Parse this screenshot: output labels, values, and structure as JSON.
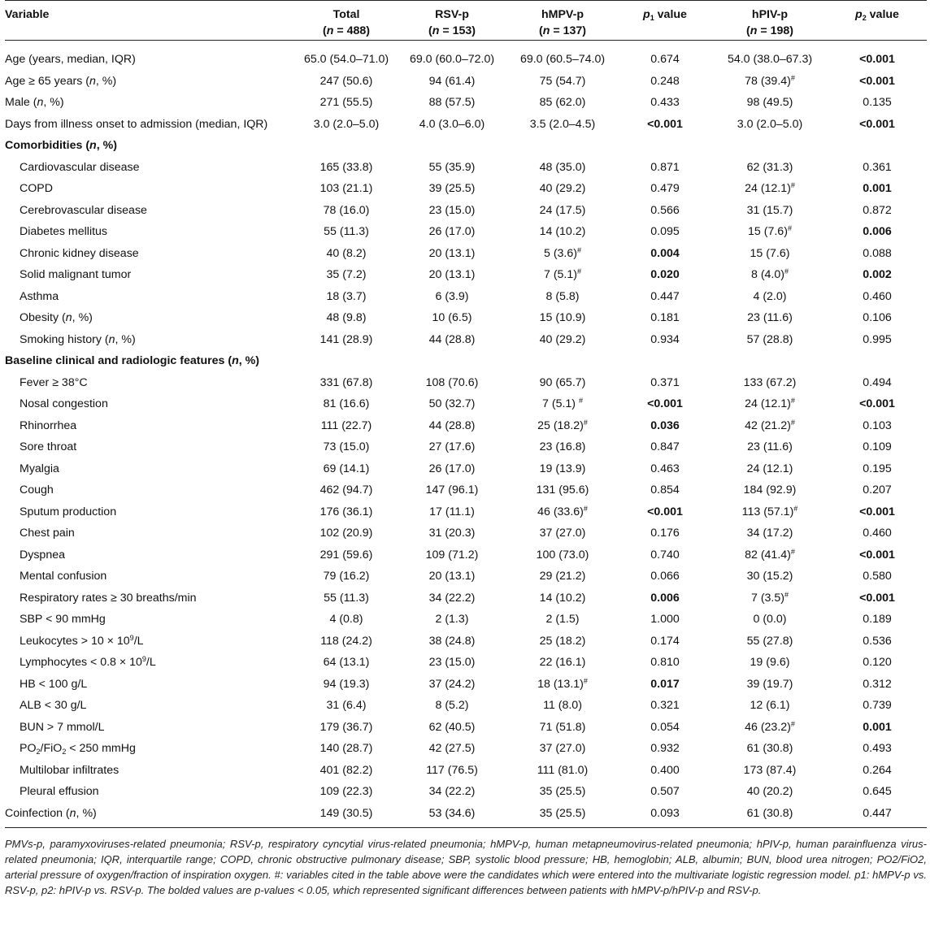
{
  "columns": [
    {
      "label": "Variable",
      "n": ""
    },
    {
      "label": "Total",
      "n": "(n = 488)"
    },
    {
      "label": "RSV-p",
      "n": "(n = 153)"
    },
    {
      "label": "hMPV-p",
      "n": "(n = 137)"
    },
    {
      "label": "p1 value",
      "n": ""
    },
    {
      "label": "hPIV-p",
      "n": "(n = 198)"
    },
    {
      "label": "p2 value",
      "n": ""
    }
  ],
  "rows": [
    {
      "type": "data",
      "indent": false,
      "label": "Age (years, median, IQR)",
      "cells": [
        "65.0 (54.0–71.0)",
        "69.0 (60.0–72.0)",
        "69.0 (60.5–74.0)",
        "0.674",
        "54.0 (38.0–67.3)",
        "<0.001"
      ],
      "bold": [
        false,
        false,
        false,
        false,
        false,
        true
      ],
      "hash": [
        false,
        false,
        false,
        false,
        false,
        false
      ]
    },
    {
      "type": "data",
      "indent": false,
      "label": "Age ≥ 65 years (n, %)",
      "cells": [
        "247 (50.6)",
        "94 (61.4)",
        "75 (54.7)",
        "0.248",
        "78 (39.4)",
        "<0.001"
      ],
      "bold": [
        false,
        false,
        false,
        false,
        false,
        true
      ],
      "hash": [
        false,
        false,
        false,
        false,
        true,
        false
      ]
    },
    {
      "type": "data",
      "indent": false,
      "label": "Male (n, %)",
      "cells": [
        "271 (55.5)",
        "88 (57.5)",
        "85 (62.0)",
        "0.433",
        "98 (49.5)",
        "0.135"
      ],
      "bold": [
        false,
        false,
        false,
        false,
        false,
        false
      ],
      "hash": [
        false,
        false,
        false,
        false,
        false,
        false
      ]
    },
    {
      "type": "data",
      "indent": false,
      "label": "Days from illness onset to admission (median, IQR)",
      "cells": [
        "3.0 (2.0–5.0)",
        "4.0 (3.0–6.0)",
        "3.5 (2.0–4.5)",
        "<0.001",
        "3.0 (2.0–5.0)",
        "<0.001"
      ],
      "bold": [
        false,
        false,
        false,
        true,
        false,
        true
      ],
      "hash": [
        false,
        false,
        false,
        false,
        false,
        false
      ]
    },
    {
      "type": "section",
      "label": "Comorbidities (n, %)"
    },
    {
      "type": "data",
      "indent": true,
      "label": "Cardiovascular disease",
      "cells": [
        "165 (33.8)",
        "55 (35.9)",
        "48 (35.0)",
        "0.871",
        "62 (31.3)",
        "0.361"
      ],
      "bold": [
        false,
        false,
        false,
        false,
        false,
        false
      ],
      "hash": [
        false,
        false,
        false,
        false,
        false,
        false
      ]
    },
    {
      "type": "data",
      "indent": true,
      "label": "COPD",
      "cells": [
        "103 (21.1)",
        "39 (25.5)",
        "40 (29.2)",
        "0.479",
        "24 (12.1)",
        "0.001"
      ],
      "bold": [
        false,
        false,
        false,
        false,
        false,
        true
      ],
      "hash": [
        false,
        false,
        false,
        false,
        true,
        false
      ]
    },
    {
      "type": "data",
      "indent": true,
      "label": "Cerebrovascular disease",
      "cells": [
        "78 (16.0)",
        "23 (15.0)",
        "24 (17.5)",
        "0.566",
        "31 (15.7)",
        "0.872"
      ],
      "bold": [
        false,
        false,
        false,
        false,
        false,
        false
      ],
      "hash": [
        false,
        false,
        false,
        false,
        false,
        false
      ]
    },
    {
      "type": "data",
      "indent": true,
      "label": "Diabetes mellitus",
      "cells": [
        "55 (11.3)",
        "26 (17.0)",
        "14 (10.2)",
        "0.095",
        "15 (7.6)",
        "0.006"
      ],
      "bold": [
        false,
        false,
        false,
        false,
        false,
        true
      ],
      "hash": [
        false,
        false,
        false,
        false,
        true,
        false
      ]
    },
    {
      "type": "data",
      "indent": true,
      "label": "Chronic kidney disease",
      "cells": [
        "40 (8.2)",
        "20 (13.1)",
        "5 (3.6)",
        "0.004",
        "15 (7.6)",
        "0.088"
      ],
      "bold": [
        false,
        false,
        false,
        true,
        false,
        false
      ],
      "hash": [
        false,
        false,
        true,
        false,
        false,
        false
      ]
    },
    {
      "type": "data",
      "indent": true,
      "label": "Solid malignant tumor",
      "cells": [
        "35 (7.2)",
        "20 (13.1)",
        "7 (5.1)",
        "0.020",
        "8 (4.0)",
        "0.002"
      ],
      "bold": [
        false,
        false,
        false,
        true,
        false,
        true
      ],
      "hash": [
        false,
        false,
        true,
        false,
        true,
        false
      ]
    },
    {
      "type": "data",
      "indent": true,
      "label": "Asthma",
      "cells": [
        "18 (3.7)",
        "6 (3.9)",
        "8 (5.8)",
        "0.447",
        "4 (2.0)",
        "0.460"
      ],
      "bold": [
        false,
        false,
        false,
        false,
        false,
        false
      ],
      "hash": [
        false,
        false,
        false,
        false,
        false,
        false
      ]
    },
    {
      "type": "data",
      "indent": true,
      "label": "Obesity (n, %)",
      "cells": [
        "48 (9.8)",
        "10 (6.5)",
        "15 (10.9)",
        "0.181",
        "23 (11.6)",
        "0.106"
      ],
      "bold": [
        false,
        false,
        false,
        false,
        false,
        false
      ],
      "hash": [
        false,
        false,
        false,
        false,
        false,
        false
      ]
    },
    {
      "type": "data",
      "indent": true,
      "label": "Smoking history (n, %)",
      "cells": [
        "141 (28.9)",
        "44 (28.8)",
        "40 (29.2)",
        "0.934",
        "57 (28.8)",
        "0.995"
      ],
      "bold": [
        false,
        false,
        false,
        false,
        false,
        false
      ],
      "hash": [
        false,
        false,
        false,
        false,
        false,
        false
      ]
    },
    {
      "type": "section",
      "label": "Baseline clinical and radiologic features (n, %)"
    },
    {
      "type": "data",
      "indent": true,
      "label": "Fever ≥ 38°C",
      "cells": [
        "331 (67.8)",
        "108 (70.6)",
        "90 (65.7)",
        "0.371",
        "133 (67.2)",
        "0.494"
      ],
      "bold": [
        false,
        false,
        false,
        false,
        false,
        false
      ],
      "hash": [
        false,
        false,
        false,
        false,
        false,
        false
      ]
    },
    {
      "type": "data",
      "indent": true,
      "label": "Nosal congestion",
      "cells": [
        "81 (16.6)",
        "50 (32.7)",
        "7 (5.1) ",
        "<0.001",
        "24 (12.1)",
        "<0.001"
      ],
      "bold": [
        false,
        false,
        false,
        true,
        false,
        true
      ],
      "hash": [
        false,
        false,
        true,
        false,
        true,
        false
      ]
    },
    {
      "type": "data",
      "indent": true,
      "label": "Rhinorrhea",
      "cells": [
        "111 (22.7)",
        "44 (28.8)",
        "25 (18.2)",
        "0.036",
        "42 (21.2)",
        "0.103"
      ],
      "bold": [
        false,
        false,
        false,
        true,
        false,
        false
      ],
      "hash": [
        false,
        false,
        true,
        false,
        true,
        false
      ]
    },
    {
      "type": "data",
      "indent": true,
      "label": "Sore throat",
      "cells": [
        "73 (15.0)",
        "27 (17.6)",
        "23 (16.8)",
        "0.847",
        "23 (11.6)",
        "0.109"
      ],
      "bold": [
        false,
        false,
        false,
        false,
        false,
        false
      ],
      "hash": [
        false,
        false,
        false,
        false,
        false,
        false
      ]
    },
    {
      "type": "data",
      "indent": true,
      "label": "Myalgia",
      "cells": [
        "69 (14.1)",
        "26 (17.0)",
        "19 (13.9)",
        "0.463",
        "24 (12.1)",
        "0.195"
      ],
      "bold": [
        false,
        false,
        false,
        false,
        false,
        false
      ],
      "hash": [
        false,
        false,
        false,
        false,
        false,
        false
      ]
    },
    {
      "type": "data",
      "indent": true,
      "label": "Cough",
      "cells": [
        "462 (94.7)",
        "147 (96.1)",
        "131 (95.6)",
        "0.854",
        "184 (92.9)",
        "0.207"
      ],
      "bold": [
        false,
        false,
        false,
        false,
        false,
        false
      ],
      "hash": [
        false,
        false,
        false,
        false,
        false,
        false
      ]
    },
    {
      "type": "data",
      "indent": true,
      "label": "Sputum production",
      "cells": [
        "176 (36.1)",
        "17 (11.1)",
        "46 (33.6)",
        "<0.001",
        "113 (57.1)",
        "<0.001"
      ],
      "bold": [
        false,
        false,
        false,
        true,
        false,
        true
      ],
      "hash": [
        false,
        false,
        true,
        false,
        true,
        false
      ]
    },
    {
      "type": "data",
      "indent": true,
      "label": "Chest pain",
      "cells": [
        "102 (20.9)",
        "31 (20.3)",
        "37 (27.0)",
        "0.176",
        "34 (17.2)",
        "0.460"
      ],
      "bold": [
        false,
        false,
        false,
        false,
        false,
        false
      ],
      "hash": [
        false,
        false,
        false,
        false,
        false,
        false
      ]
    },
    {
      "type": "data",
      "indent": true,
      "label": "Dyspnea",
      "cells": [
        "291 (59.6)",
        "109 (71.2)",
        "100 (73.0)",
        "0.740",
        "82 (41.4)",
        "<0.001"
      ],
      "bold": [
        false,
        false,
        false,
        false,
        false,
        true
      ],
      "hash": [
        false,
        false,
        false,
        false,
        true,
        false
      ]
    },
    {
      "type": "data",
      "indent": true,
      "label": "Mental confusion",
      "cells": [
        "79 (16.2)",
        "20 (13.1)",
        "29 (21.2)",
        "0.066",
        "30 (15.2)",
        "0.580"
      ],
      "bold": [
        false,
        false,
        false,
        false,
        false,
        false
      ],
      "hash": [
        false,
        false,
        false,
        false,
        false,
        false
      ]
    },
    {
      "type": "data",
      "indent": true,
      "label": "Respiratory rates ≥ 30 breaths/min",
      "cells": [
        "55 (11.3)",
        "34 (22.2)",
        "14 (10.2)",
        "0.006",
        "7 (3.5)",
        "<0.001"
      ],
      "bold": [
        false,
        false,
        false,
        true,
        false,
        true
      ],
      "hash": [
        false,
        false,
        false,
        false,
        true,
        false
      ]
    },
    {
      "type": "data",
      "indent": true,
      "label": "SBP < 90 mmHg",
      "cells": [
        "4 (0.8)",
        "2 (1.3)",
        "2 (1.5)",
        "1.000",
        "0 (0.0)",
        "0.189"
      ],
      "bold": [
        false,
        false,
        false,
        false,
        false,
        false
      ],
      "hash": [
        false,
        false,
        false,
        false,
        false,
        false
      ]
    },
    {
      "type": "data",
      "indent": true,
      "label": "Leukocytes > 10 × 10",
      "labelSup": "9",
      "labelTail": "/L",
      "cells": [
        "118 (24.2)",
        "38 (24.8)",
        "25 (18.2)",
        "0.174",
        "55 (27.8)",
        "0.536"
      ],
      "bold": [
        false,
        false,
        false,
        false,
        false,
        false
      ],
      "hash": [
        false,
        false,
        false,
        false,
        false,
        false
      ]
    },
    {
      "type": "data",
      "indent": true,
      "label": "Lymphocytes < 0.8 × 10",
      "labelSup": "9",
      "labelTail": "/L",
      "cells": [
        "64 (13.1)",
        "23 (15.0)",
        "22 (16.1)",
        "0.810",
        "19 (9.6)",
        "0.120"
      ],
      "bold": [
        false,
        false,
        false,
        false,
        false,
        false
      ],
      "hash": [
        false,
        false,
        false,
        false,
        false,
        false
      ]
    },
    {
      "type": "data",
      "indent": true,
      "label": "HB < 100 g/L",
      "cells": [
        "94 (19.3)",
        "37 (24.2)",
        "18 (13.1)",
        "0.017",
        "39 (19.7)",
        "0.312"
      ],
      "bold": [
        false,
        false,
        false,
        true,
        false,
        false
      ],
      "hash": [
        false,
        false,
        true,
        false,
        false,
        false
      ]
    },
    {
      "type": "data",
      "indent": true,
      "label": "ALB < 30 g/L",
      "cells": [
        "31 (6.4)",
        "8 (5.2)",
        "11 (8.0)",
        "0.321",
        "12 (6.1)",
        "0.739"
      ],
      "bold": [
        false,
        false,
        false,
        false,
        false,
        false
      ],
      "hash": [
        false,
        false,
        false,
        false,
        false,
        false
      ]
    },
    {
      "type": "data",
      "indent": true,
      "label": "BUN > 7 mmol/L",
      "cells": [
        "179 (36.7)",
        "62 (40.5)",
        "71 (51.8)",
        "0.054",
        "46 (23.2)",
        "0.001"
      ],
      "bold": [
        false,
        false,
        false,
        false,
        false,
        true
      ],
      "hash": [
        false,
        false,
        false,
        false,
        true,
        false
      ]
    },
    {
      "type": "data",
      "indent": true,
      "label": "PO2/FiO2 < 250 mmHg",
      "cells": [
        "140 (28.7)",
        "42 (27.5)",
        "37 (27.0)",
        "0.932",
        "61 (30.8)",
        "0.493"
      ],
      "bold": [
        false,
        false,
        false,
        false,
        false,
        false
      ],
      "hash": [
        false,
        false,
        false,
        false,
        false,
        false
      ]
    },
    {
      "type": "data",
      "indent": true,
      "label": "Multilobar infiltrates",
      "cells": [
        "401 (82.2)",
        "117 (76.5)",
        "111 (81.0)",
        "0.400",
        "173 (87.4)",
        "0.264"
      ],
      "bold": [
        false,
        false,
        false,
        false,
        false,
        false
      ],
      "hash": [
        false,
        false,
        false,
        false,
        false,
        false
      ]
    },
    {
      "type": "data",
      "indent": true,
      "label": "Pleural effusion",
      "cells": [
        "109 (22.3)",
        "34 (22.2)",
        "35 (25.5)",
        "0.507",
        "40 (20.2)",
        "0.645"
      ],
      "bold": [
        false,
        false,
        false,
        false,
        false,
        false
      ],
      "hash": [
        false,
        false,
        false,
        false,
        false,
        false
      ]
    },
    {
      "type": "data",
      "indent": false,
      "label": "Coinfection (n, %)",
      "cells": [
        "149 (30.5)",
        "53 (34.6)",
        "35 (25.5)",
        "0.093",
        "61 (30.8)",
        "0.447"
      ],
      "bold": [
        false,
        false,
        false,
        false,
        false,
        false
      ],
      "hash": [
        false,
        false,
        false,
        false,
        false,
        false
      ]
    }
  ],
  "hash_mark": "#",
  "footnote": "PMVs-p, paramyxoviruses-related pneumonia; RSV-p, respiratory cyncytial virus-related pneumonia; hMPV-p, human metapneumovirus-related pneumonia; hPIV-p, human parainfluenza virus-related pneumonia; IQR, interquartile range; COPD, chronic obstructive pulmonary disease; SBP, systolic blood pressure; HB, hemoglobin; ALB, albumin; BUN, blood urea nitrogen; PO2/FiO2, arterial pressure of oxygen/fraction of inspiration oxygen. #: variables cited in the table above were the candidates which were entered into the multivariate logistic regression model. p1: hMPV-p vs. RSV-p, p2: hPIV-p vs. RSV-p. The bolded values are p-values < 0.05, which represented significant differences between patients with hMPV-p/hPIV-p and RSV-p."
}
